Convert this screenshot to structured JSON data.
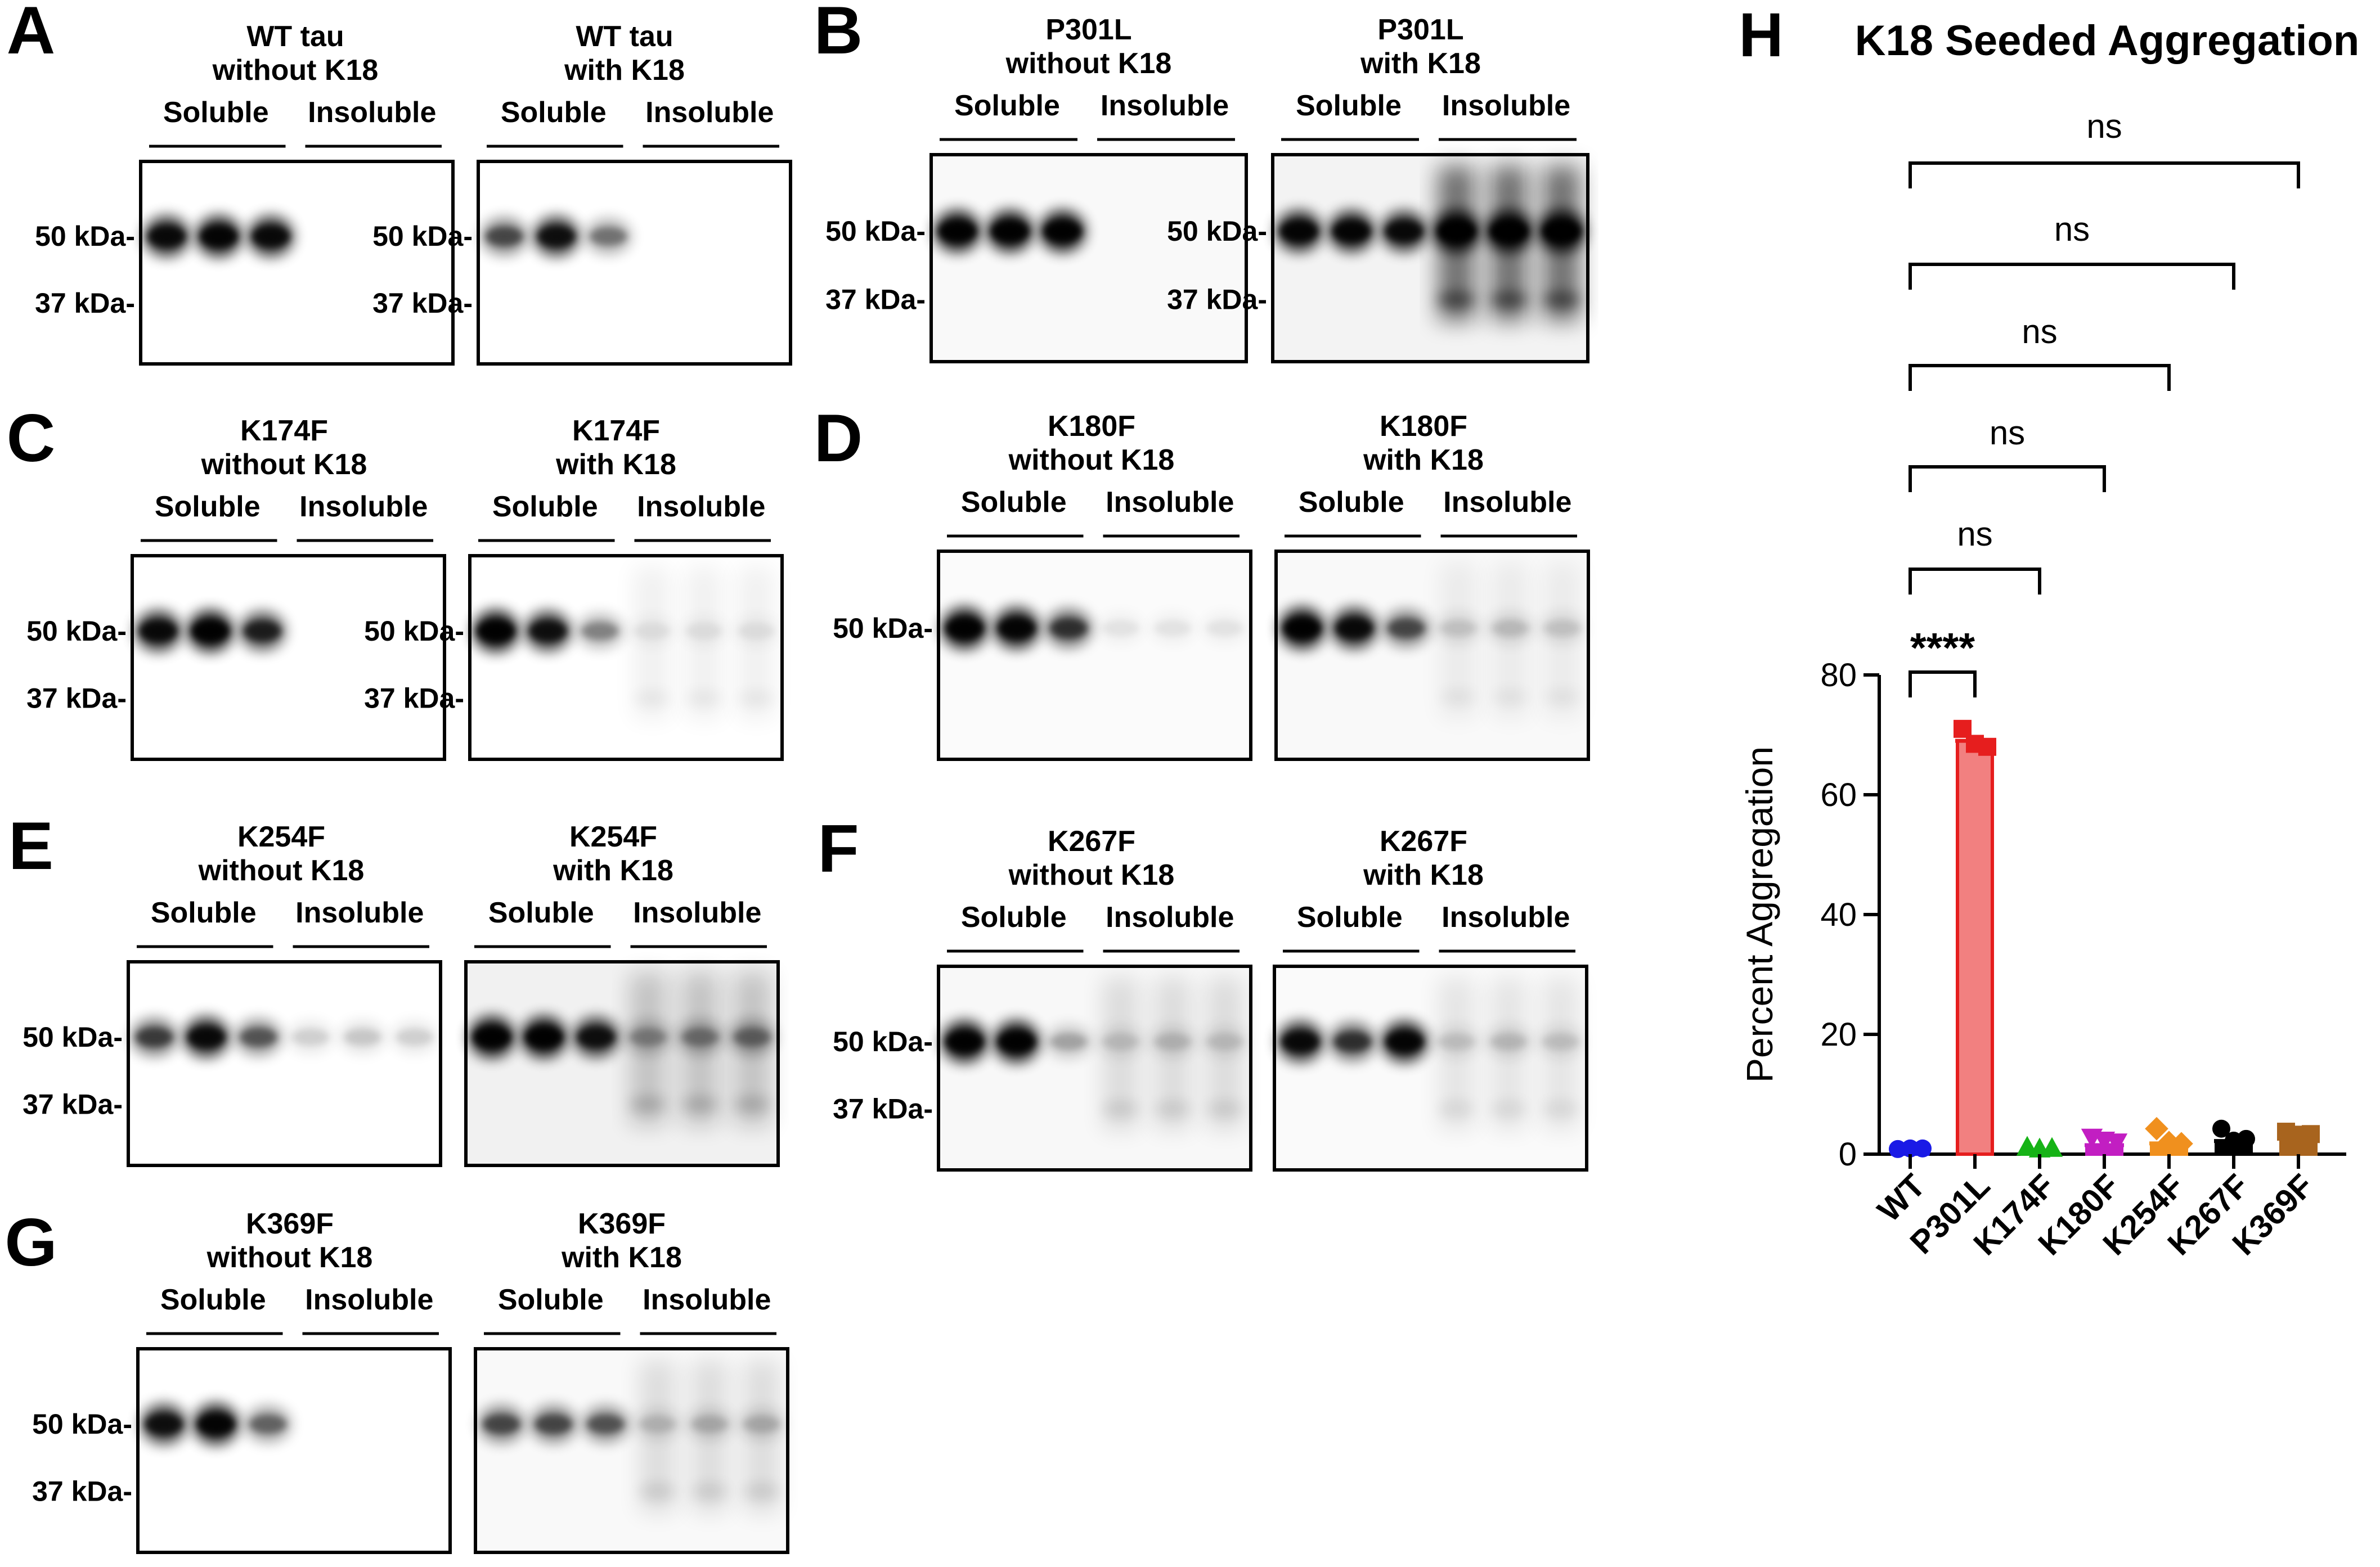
{
  "marker_labels": [
    "50 kDa-",
    "37 kDa-"
  ],
  "fraction_labels": [
    "Soluble",
    "Insoluble"
  ],
  "panels": [
    {
      "letter": "A",
      "title1": "WT tau",
      "title2": "without K18",
      "ticks": [
        0,
        1
      ],
      "soluble": [
        0.85,
        0.9,
        0.85
      ],
      "insoluble": [
        0,
        0,
        0
      ],
      "smear": 0,
      "bg": 0
    },
    {
      "letter": "",
      "title1": "WT tau",
      "title2": "with K18",
      "ticks": [
        0,
        1
      ],
      "soluble": [
        0.5,
        0.8,
        0.35
      ],
      "insoluble": [
        0,
        0,
        0
      ],
      "smear": 0,
      "bg": 0
    },
    {
      "letter": "B",
      "title1": "P301L",
      "title2": "without K18",
      "ticks": [
        0,
        1
      ],
      "soluble": [
        0.95,
        0.95,
        0.95
      ],
      "insoluble": [
        0,
        0,
        0
      ],
      "smear": 0,
      "bg": 0.05
    },
    {
      "letter": "",
      "title1": "P301L",
      "title2": "with K18",
      "ticks": [
        0,
        1
      ],
      "soluble": [
        0.9,
        0.9,
        0.85
      ],
      "insoluble": [
        1,
        1,
        1
      ],
      "smear": 1,
      "bg": 0.1
    },
    {
      "letter": "C",
      "title1": "K174F",
      "title2": "without K18",
      "ticks": [
        0,
        1
      ],
      "soluble": [
        0.85,
        0.95,
        0.7
      ],
      "insoluble": [
        0,
        0,
        0
      ],
      "smear": 0,
      "bg": 0
    },
    {
      "letter": "",
      "title1": "K174F",
      "title2": "with K18",
      "ticks": [
        0,
        1
      ],
      "soluble": [
        0.95,
        0.8,
        0.3
      ],
      "insoluble": [
        0.05,
        0.05,
        0.05
      ],
      "smear": 0.1,
      "bg": 0
    },
    {
      "letter": "D",
      "title1": "K180F",
      "title2": "without K18",
      "ticks": [
        0
      ],
      "soluble": [
        0.95,
        0.9,
        0.6
      ],
      "insoluble": [
        0.05,
        0.05,
        0.05
      ],
      "smear": 0,
      "bg": 0.03
    },
    {
      "letter": "",
      "title1": "K180F",
      "title2": "with K18",
      "ticks": [],
      "soluble": [
        0.95,
        0.85,
        0.5
      ],
      "insoluble": [
        0.1,
        0.12,
        0.1
      ],
      "smear": 0.1,
      "bg": 0.05
    },
    {
      "letter": "E",
      "title1": "K254F",
      "title2": "without K18",
      "ticks": [
        0,
        1
      ],
      "soluble": [
        0.55,
        0.85,
        0.45
      ],
      "insoluble": [
        0.1,
        0.12,
        0.1
      ],
      "smear": 0,
      "bg": 0
    },
    {
      "letter": "",
      "title1": "K254F",
      "title2": "with K18",
      "ticks": [],
      "soluble": [
        0.95,
        0.95,
        0.8
      ],
      "insoluble": [
        0.25,
        0.3,
        0.35
      ],
      "smear": 0.35,
      "bg": 0.12
    },
    {
      "letter": "F",
      "title1": "K267F",
      "title2": "without K18",
      "ticks": [
        0,
        1
      ],
      "soluble": [
        0.95,
        0.95,
        0.2
      ],
      "insoluble": [
        0.1,
        0.12,
        0.1
      ],
      "smear": 0.2,
      "bg": 0.06
    },
    {
      "letter": "",
      "title1": "K267F",
      "title2": "with K18",
      "ticks": [],
      "soluble": [
        0.85,
        0.6,
        0.9
      ],
      "insoluble": [
        0.1,
        0.12,
        0.1
      ],
      "smear": 0.15,
      "bg": 0.04
    },
    {
      "letter": "G",
      "title1": "K369F",
      "title2": "without K18",
      "ticks": [
        0,
        1
      ],
      "soluble": [
        0.8,
        0.9,
        0.4
      ],
      "insoluble": [
        0,
        0,
        0
      ],
      "smear": 0,
      "bg": 0
    },
    {
      "letter": "",
      "title1": "K369F",
      "title2": "with K18",
      "ticks": [],
      "soluble": [
        0.5,
        0.5,
        0.45
      ],
      "insoluble": [
        0.12,
        0.15,
        0.15
      ],
      "smear": 0.2,
      "bg": 0.05
    }
  ],
  "chart_data": {
    "type": "bar",
    "panel_letter": "H",
    "title": "K18 Seeded Aggregation",
    "ylabel": "Percent Aggregation",
    "xlabel": "",
    "ylim": [
      0,
      80
    ],
    "yticks": [
      0,
      20,
      40,
      60,
      80
    ],
    "categories": [
      "WT",
      "P301L",
      "K174F",
      "K180F",
      "K254F",
      "K267F",
      "K369F"
    ],
    "values": [
      0.2,
      69,
      0.3,
      1.5,
      1.8,
      2.2,
      2.6
    ],
    "points": [
      [
        0.1,
        0.2,
        0.2
      ],
      [
        71,
        68.5,
        68
      ],
      [
        0.5,
        0.2,
        0.3
      ],
      [
        2.0,
        1.5,
        1.2
      ],
      [
        3.5,
        1.2,
        1.0
      ],
      [
        3.5,
        1.5,
        1.8
      ],
      [
        3.0,
        2.5,
        2.6
      ]
    ],
    "colors": [
      "#1a1ae6",
      "#e61e1e",
      "#16b316",
      "#c21ec2",
      "#f0901e",
      "#000000",
      "#a8641e"
    ],
    "bar_fill": [
      "#1a1ae6",
      "#f28080",
      "#16b316",
      "#c21ec2",
      "#f0901e",
      "#000000",
      "#a8641e"
    ],
    "markers": [
      "circle",
      "square",
      "triangle-up",
      "triangle-down",
      "diamond",
      "circle",
      "square"
    ],
    "significance": [
      {
        "from": "WT",
        "to": "P301L",
        "label": "****"
      },
      {
        "from": "WT",
        "to": "K174F",
        "label": "ns"
      },
      {
        "from": "WT",
        "to": "K180F",
        "label": "ns"
      },
      {
        "from": "WT",
        "to": "K254F",
        "label": "ns"
      },
      {
        "from": "WT",
        "to": "K267F",
        "label": "ns"
      },
      {
        "from": "WT",
        "to": "K369F",
        "label": "ns"
      }
    ]
  }
}
